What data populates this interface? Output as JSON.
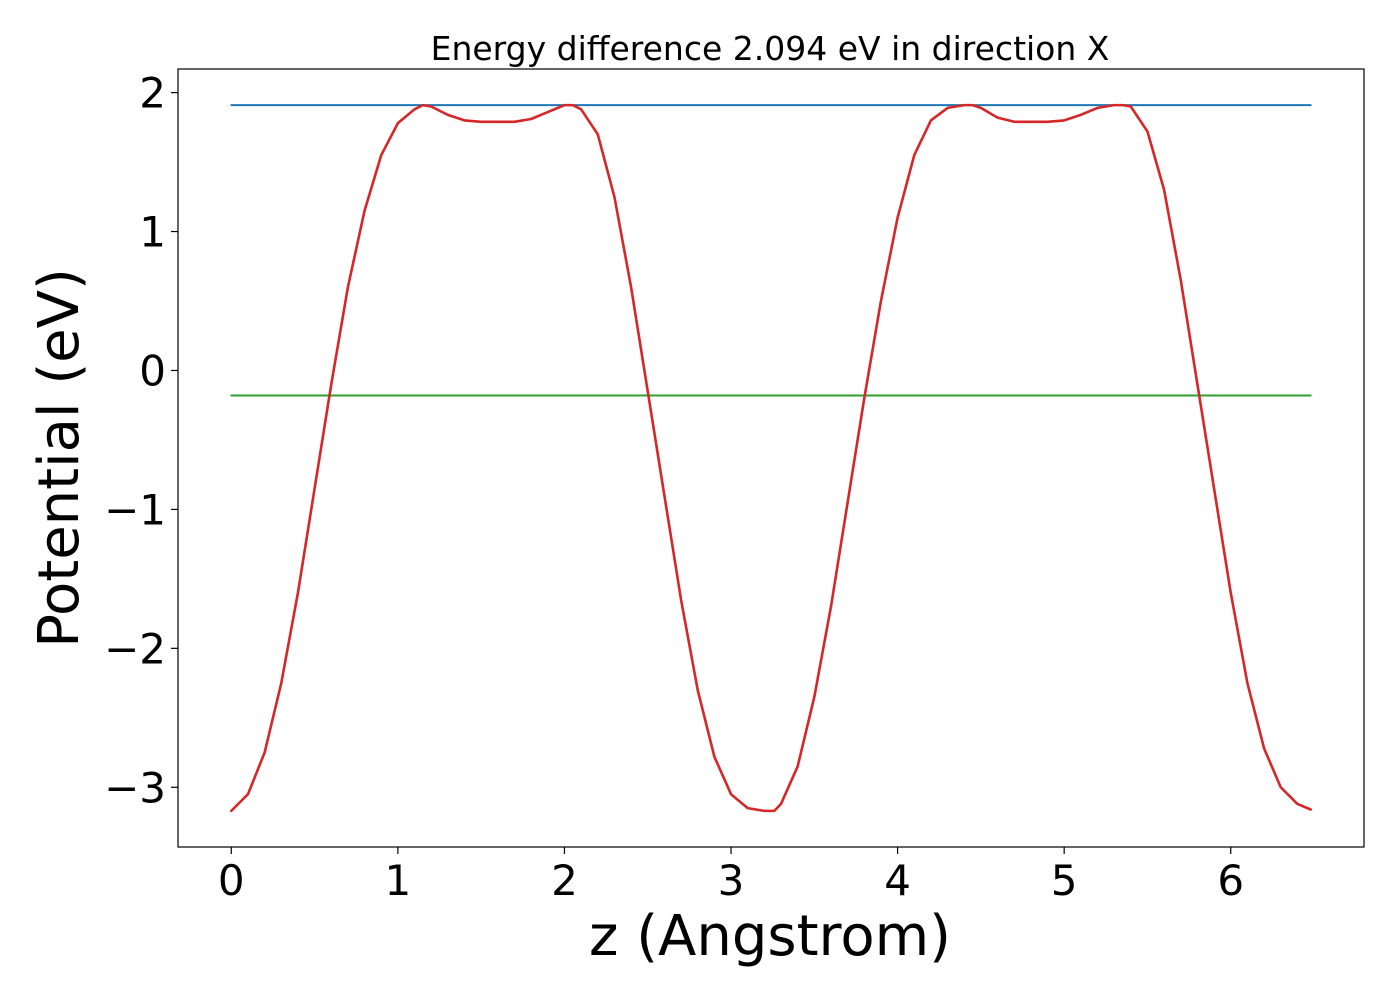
{
  "chart_data": {
    "type": "line",
    "title": "Energy difference 2.094 eV in direction X",
    "xlabel": "z (Angstrom)",
    "ylabel": "Potential (eV)",
    "xlim": [
      -0.32,
      6.8
    ],
    "ylim": [
      -3.43,
      2.17
    ],
    "xticks": [
      0,
      1,
      2,
      3,
      4,
      5,
      6
    ],
    "xtick_labels": [
      "0",
      "1",
      "2",
      "3",
      "4",
      "5",
      "6"
    ],
    "yticks": [
      -3,
      -2,
      -1,
      0,
      1,
      2
    ],
    "ytick_labels": [
      "−3",
      "−2",
      "−1",
      "0",
      "1",
      "2"
    ],
    "grid": false,
    "legend": "none",
    "series": [
      {
        "color": "#d62728",
        "x": [
          0.0,
          0.1,
          0.2,
          0.3,
          0.4,
          0.5,
          0.6,
          0.7,
          0.8,
          0.9,
          1.0,
          1.1,
          1.15,
          1.2,
          1.3,
          1.4,
          1.5,
          1.6,
          1.7,
          1.8,
          1.9,
          2.0,
          2.05,
          2.1,
          2.2,
          2.3,
          2.4,
          2.5,
          2.6,
          2.7,
          2.8,
          2.9,
          3.0,
          3.1,
          3.2,
          3.26,
          3.3,
          3.4,
          3.5,
          3.6,
          3.7,
          3.8,
          3.9,
          4.0,
          4.1,
          4.2,
          4.3,
          4.4,
          4.45,
          4.5,
          4.6,
          4.7,
          4.8,
          4.9,
          5.0,
          5.1,
          5.2,
          5.3,
          5.35,
          5.4,
          5.5,
          5.6,
          5.7,
          5.8,
          5.9,
          6.0,
          6.1,
          6.2,
          6.3,
          6.4,
          6.48
        ],
        "y": [
          -3.17,
          -3.05,
          -2.75,
          -2.25,
          -1.6,
          -0.85,
          -0.1,
          0.6,
          1.15,
          1.55,
          1.78,
          1.88,
          1.91,
          1.9,
          1.84,
          1.8,
          1.79,
          1.79,
          1.79,
          1.81,
          1.86,
          1.91,
          1.91,
          1.88,
          1.7,
          1.25,
          0.6,
          -0.15,
          -0.9,
          -1.65,
          -2.3,
          -2.78,
          -3.05,
          -3.15,
          -3.17,
          -3.17,
          -3.12,
          -2.85,
          -2.35,
          -1.7,
          -0.95,
          -0.2,
          0.5,
          1.1,
          1.55,
          1.8,
          1.89,
          1.91,
          1.91,
          1.89,
          1.82,
          1.79,
          1.79,
          1.79,
          1.8,
          1.84,
          1.89,
          1.91,
          1.91,
          1.9,
          1.72,
          1.3,
          0.65,
          -0.1,
          -0.85,
          -1.6,
          -2.25,
          -2.72,
          -3.0,
          -3.12,
          -3.16
        ]
      },
      {
        "color": "#1f77b4",
        "x": [
          0.0,
          6.48
        ],
        "y": [
          1.91,
          1.91
        ]
      },
      {
        "color": "#2ca02c",
        "x": [
          0.0,
          6.48
        ],
        "y": [
          -0.18,
          -0.18
        ]
      }
    ]
  }
}
